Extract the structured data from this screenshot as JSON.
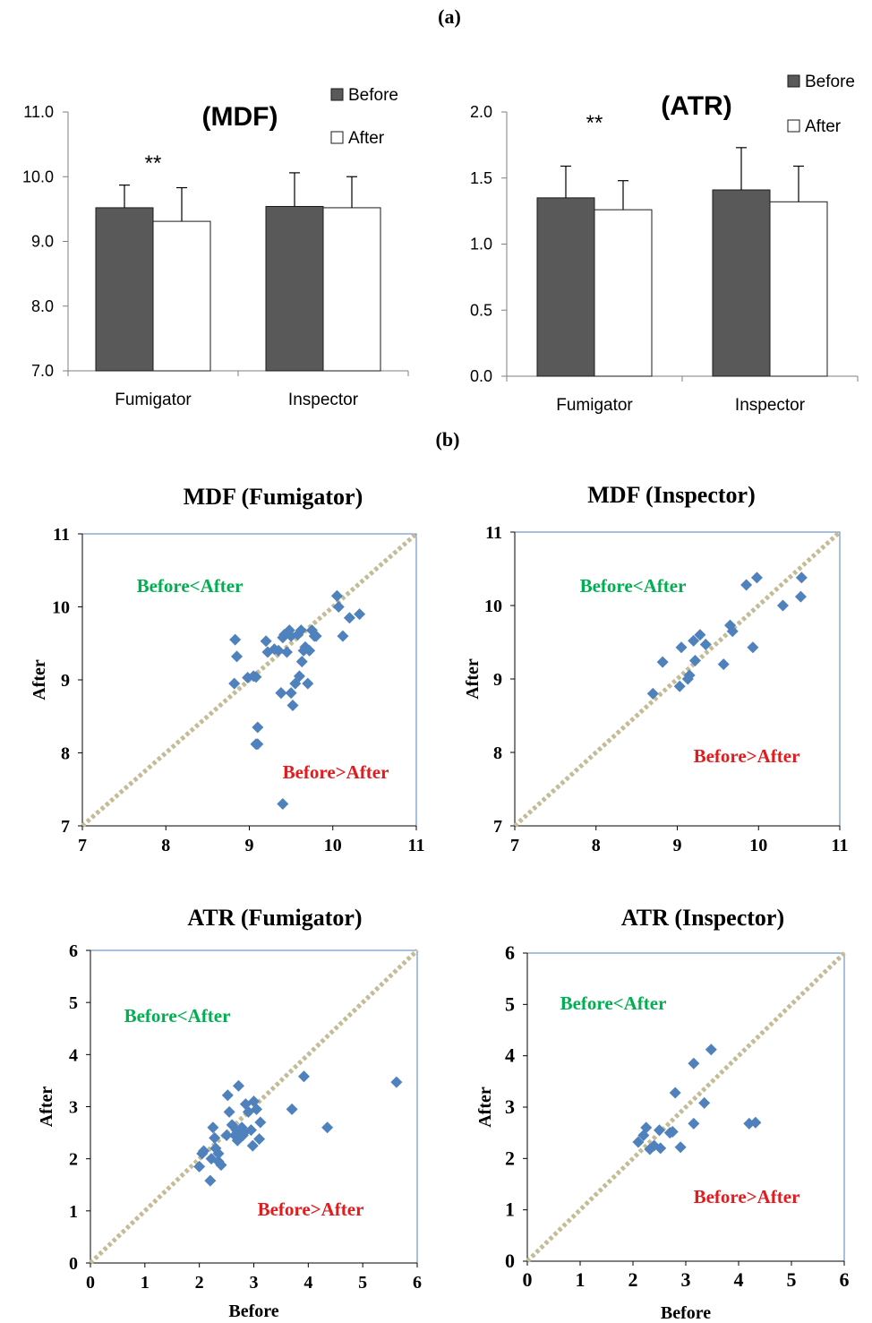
{
  "panel_labels": {
    "a": "(a)",
    "b": "(b)"
  },
  "colors": {
    "before_bar": "#595959",
    "after_bar": "#ffffff",
    "bar_edge": "#1a1a1a",
    "scatter_point": "#4f81bd",
    "identity_line": "#c4bc96",
    "plot_frame": "#4f81bd",
    "label_upper": "#00b050",
    "label_lower": "#e41a1c"
  },
  "chart_data": [
    {
      "id": "mdf-bar",
      "type": "bar",
      "title": "(MDF)",
      "categories": [
        "Fumigator",
        "Inspector"
      ],
      "series": [
        {
          "name": "Before",
          "values": [
            9.52,
            9.54
          ],
          "error": [
            0.35,
            0.52
          ]
        },
        {
          "name": "After",
          "values": [
            9.31,
            9.52
          ],
          "error": [
            0.52,
            0.48
          ]
        }
      ],
      "annotations": [
        {
          "text": "**",
          "category": "Fumigator"
        }
      ],
      "ylim": [
        7.0,
        11.0
      ],
      "yticks": [
        "7.0",
        "8.0",
        "9.0",
        "10.0",
        "11.0"
      ],
      "xlabel": "",
      "ylabel": "",
      "legend": "top-right"
    },
    {
      "id": "atr-bar",
      "type": "bar",
      "title": "(ATR)",
      "categories": [
        "Fumigator",
        "Inspector"
      ],
      "series": [
        {
          "name": "Before",
          "values": [
            1.35,
            1.41
          ],
          "error": [
            0.24,
            0.32
          ]
        },
        {
          "name": "After",
          "values": [
            1.26,
            1.32
          ],
          "error": [
            0.22,
            0.27
          ]
        }
      ],
      "annotations": [
        {
          "text": "**",
          "category": "Fumigator"
        }
      ],
      "ylim": [
        0.0,
        2.0
      ],
      "yticks": [
        "0.0",
        "0.5",
        "1.0",
        "1.5",
        "2.0"
      ],
      "xlabel": "",
      "ylabel": "",
      "legend": "top-right"
    },
    {
      "id": "mdf-fumigator",
      "type": "scatter",
      "title": "MDF (Fumigator)",
      "xlabel": "",
      "ylabel": "After",
      "xlim": [
        7,
        11
      ],
      "ylim": [
        7,
        11
      ],
      "xticks": [
        7,
        8,
        9,
        10,
        11
      ],
      "yticks": [
        7,
        8,
        9,
        10,
        11
      ],
      "identity_line": true,
      "region_labels": {
        "upper": "Before<After",
        "lower": "Before>After"
      },
      "x": [
        8.82,
        8.83,
        8.85,
        8.98,
        9.05,
        9.08,
        9.1,
        9.2,
        9.22,
        9.3,
        9.35,
        9.38,
        9.4,
        9.42,
        9.45,
        9.48,
        9.5,
        9.5,
        9.52,
        9.55,
        9.58,
        9.6,
        9.62,
        9.63,
        9.65,
        9.67,
        9.7,
        9.72,
        9.75,
        9.78,
        9.8,
        9.08,
        9.1,
        9.4,
        10.05,
        10.07,
        10.12,
        10.2,
        10.32,
        9.38
      ],
      "y": [
        8.95,
        9.55,
        9.32,
        9.03,
        9.05,
        9.04,
        8.35,
        9.53,
        9.38,
        9.42,
        9.4,
        8.82,
        9.58,
        9.62,
        9.38,
        9.68,
        8.82,
        9.6,
        8.65,
        8.95,
        9.62,
        9.05,
        9.68,
        9.25,
        9.4,
        9.45,
        8.95,
        9.4,
        9.68,
        9.6,
        9.6,
        8.12,
        8.12,
        7.3,
        10.15,
        10.0,
        9.6,
        9.85,
        9.9,
        8.82
      ]
    },
    {
      "id": "mdf-inspector",
      "type": "scatter",
      "title": "MDF (Inspector)",
      "xlabel": "",
      "ylabel": "After",
      "xlim": [
        7,
        11
      ],
      "ylim": [
        7,
        11
      ],
      "xticks": [
        7,
        8,
        9,
        10,
        11
      ],
      "yticks": [
        7,
        8,
        9,
        10,
        11
      ],
      "identity_line": true,
      "region_labels": {
        "upper": "Before<After",
        "lower": "Before>After"
      },
      "x": [
        8.7,
        8.82,
        9.03,
        9.05,
        9.13,
        9.15,
        9.2,
        9.22,
        9.28,
        9.35,
        9.57,
        9.65,
        9.68,
        9.85,
        9.93,
        9.98,
        10.3,
        10.52,
        10.53
      ],
      "y": [
        8.8,
        9.23,
        8.9,
        9.43,
        9.0,
        9.05,
        9.52,
        9.25,
        9.6,
        9.47,
        9.2,
        9.73,
        9.65,
        10.28,
        9.43,
        10.38,
        10.0,
        10.12,
        10.38
      ]
    },
    {
      "id": "atr-fumigator",
      "type": "scatter",
      "title": "ATR (Fumigator)",
      "xlabel": "Before",
      "ylabel": "After",
      "xlim": [
        0,
        6
      ],
      "ylim": [
        0,
        6
      ],
      "xticks": [
        0,
        1,
        2,
        3,
        4,
        5,
        6
      ],
      "yticks": [
        0,
        1,
        2,
        3,
        4,
        5,
        6
      ],
      "identity_line": true,
      "region_labels": {
        "upper": "Before<After",
        "lower": "Before>After"
      },
      "x": [
        2.0,
        2.05,
        2.08,
        2.2,
        2.22,
        2.25,
        2.28,
        2.3,
        2.35,
        2.35,
        2.4,
        2.5,
        2.52,
        2.55,
        2.6,
        2.65,
        2.68,
        2.7,
        2.72,
        2.75,
        2.78,
        2.8,
        2.82,
        2.85,
        2.9,
        2.95,
        2.98,
        3.0,
        3.05,
        3.1,
        3.12,
        3.7,
        3.92,
        4.35,
        5.62
      ],
      "y": [
        1.85,
        2.1,
        2.15,
        1.58,
        2.0,
        2.6,
        2.4,
        2.2,
        1.95,
        2.1,
        1.88,
        2.45,
        3.22,
        2.9,
        2.65,
        2.45,
        2.55,
        2.35,
        3.4,
        2.5,
        2.6,
        2.45,
        2.5,
        3.05,
        2.9,
        2.55,
        2.25,
        3.1,
        2.95,
        2.38,
        2.7,
        2.95,
        3.58,
        2.6,
        3.47
      ]
    },
    {
      "id": "atr-inspector",
      "type": "scatter",
      "title": "ATR (Inspector)",
      "xlabel": "Before",
      "ylabel": "After",
      "xlim": [
        0,
        6
      ],
      "ylim": [
        0,
        6
      ],
      "xticks": [
        0,
        1,
        2,
        3,
        4,
        5,
        6
      ],
      "yticks": [
        0,
        1,
        2,
        3,
        4,
        5,
        6
      ],
      "identity_line": true,
      "region_labels": {
        "upper": "Before<After",
        "lower": "Before>After"
      },
      "x": [
        2.1,
        2.2,
        2.25,
        2.32,
        2.4,
        2.5,
        2.52,
        2.7,
        2.75,
        2.8,
        2.9,
        3.15,
        3.15,
        3.35,
        3.48,
        4.2,
        4.32
      ],
      "y": [
        2.32,
        2.45,
        2.6,
        2.18,
        2.25,
        2.55,
        2.2,
        2.5,
        2.52,
        3.28,
        2.22,
        2.68,
        3.85,
        3.08,
        4.12,
        2.68,
        2.7
      ]
    }
  ]
}
